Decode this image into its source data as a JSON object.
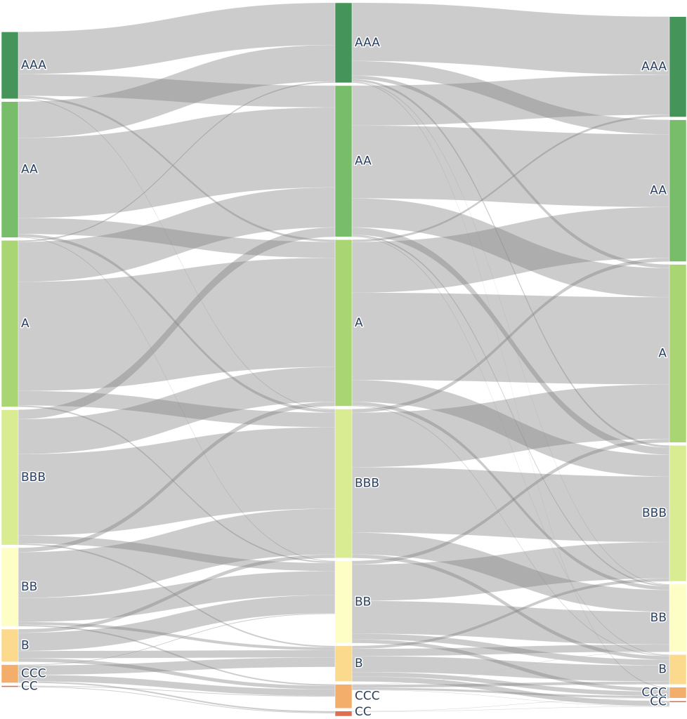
{
  "chart_data": {
    "type": "sankey",
    "title": "",
    "stages": [
      {
        "name": "",
        "nodes": [
          {
            "label": "AAA",
            "value": 92
          },
          {
            "label": "AA",
            "value": 187
          },
          {
            "label": "A",
            "value": 229
          },
          {
            "label": "BBB",
            "value": 186
          },
          {
            "label": "BB",
            "value": 108
          },
          {
            "label": "B",
            "value": 45
          },
          {
            "label": "CCC",
            "value": 25
          },
          {
            "label": "CC",
            "value": 2
          }
        ]
      },
      {
        "name": "",
        "nodes": [
          {
            "label": "AAA",
            "value": 110
          },
          {
            "label": "AA",
            "value": 208
          },
          {
            "label": "A",
            "value": 229
          },
          {
            "label": "BBB",
            "value": 205
          },
          {
            "label": "BB",
            "value": 113
          },
          {
            "label": "B",
            "value": 49
          },
          {
            "label": "CCC",
            "value": 33
          },
          {
            "label": "CC",
            "value": 7
          }
        ]
      },
      {
        "name": "",
        "nodes": [
          {
            "label": "AAA",
            "value": 138
          },
          {
            "label": "AA",
            "value": 195
          },
          {
            "label": "A",
            "value": 245
          },
          {
            "label": "BBB",
            "value": 187
          },
          {
            "label": "BB",
            "value": 93
          },
          {
            "label": "B",
            "value": 41
          },
          {
            "label": "CCC",
            "value": 15
          },
          {
            "label": "CC",
            "value": 2
          }
        ]
      }
    ],
    "node_colors": [
      "#459459",
      "#78bd6a",
      "#a9d672",
      "#d9ec92",
      "#fdfec6",
      "#fbd98d",
      "#f2ae6a",
      "#df6f4f"
    ],
    "link_color": "rgba(128,128,128,0.4)",
    "links": [
      {
        "stage": 0,
        "source": "AAA",
        "target": "AAA",
        "value": 58
      },
      {
        "stage": 0,
        "source": "AAA",
        "target": "AA",
        "value": 30
      },
      {
        "stage": 0,
        "source": "AAA",
        "target": "A",
        "value": 3
      },
      {
        "stage": 0,
        "source": "AAA",
        "target": "BBB",
        "value": 1
      },
      {
        "stage": 0,
        "source": "AA",
        "target": "AAA",
        "value": 50
      },
      {
        "stage": 0,
        "source": "AA",
        "target": "AA",
        "value": 110
      },
      {
        "stage": 0,
        "source": "AA",
        "target": "A",
        "value": 22
      },
      {
        "stage": 0,
        "source": "AA",
        "target": "BBB",
        "value": 4
      },
      {
        "stage": 0,
        "source": "AA",
        "target": "BB",
        "value": 1
      },
      {
        "stage": 0,
        "source": "A",
        "target": "AAA",
        "value": 2
      },
      {
        "stage": 0,
        "source": "A",
        "target": "AA",
        "value": 55
      },
      {
        "stage": 0,
        "source": "A",
        "target": "A",
        "value": 150
      },
      {
        "stage": 0,
        "source": "A",
        "target": "BBB",
        "value": 20
      },
      {
        "stage": 0,
        "source": "A",
        "target": "BB",
        "value": 2
      },
      {
        "stage": 0,
        "source": "BBB",
        "target": "AA",
        "value": 13
      },
      {
        "stage": 0,
        "source": "BBB",
        "target": "A",
        "value": 48
      },
      {
        "stage": 0,
        "source": "BBB",
        "target": "BBB",
        "value": 112
      },
      {
        "stage": 0,
        "source": "BBB",
        "target": "BB",
        "value": 11
      },
      {
        "stage": 0,
        "source": "BBB",
        "target": "B",
        "value": 2
      },
      {
        "stage": 0,
        "source": "BB",
        "target": "A",
        "value": 6
      },
      {
        "stage": 0,
        "source": "BB",
        "target": "BBB",
        "value": 63
      },
      {
        "stage": 0,
        "source": "BB",
        "target": "BB",
        "value": 33
      },
      {
        "stage": 0,
        "source": "BB",
        "target": "B",
        "value": 4
      },
      {
        "stage": 0,
        "source": "BB",
        "target": "CCC",
        "value": 2
      },
      {
        "stage": 0,
        "source": "B",
        "target": "BBB",
        "value": 5
      },
      {
        "stage": 0,
        "source": "B",
        "target": "BB",
        "value": 25
      },
      {
        "stage": 0,
        "source": "B",
        "target": "B",
        "value": 10
      },
      {
        "stage": 0,
        "source": "B",
        "target": "CCC",
        "value": 5
      },
      {
        "stage": 0,
        "source": "CCC",
        "target": "BB",
        "value": 1
      },
      {
        "stage": 0,
        "source": "CCC",
        "target": "B",
        "value": 13
      },
      {
        "stage": 0,
        "source": "CCC",
        "target": "CCC",
        "value": 9
      },
      {
        "stage": 0,
        "source": "CCC",
        "target": "CC",
        "value": 2
      },
      {
        "stage": 0,
        "source": "CC",
        "target": "CCC",
        "value": 1
      },
      {
        "stage": 0,
        "source": "CC",
        "target": "CC",
        "value": 1
      },
      {
        "stage": 1,
        "source": "AAA",
        "target": "AAA",
        "value": 80
      },
      {
        "stage": 1,
        "source": "AAA",
        "target": "AA",
        "value": 20
      },
      {
        "stage": 1,
        "source": "AAA",
        "target": "A",
        "value": 5
      },
      {
        "stage": 1,
        "source": "AAA",
        "target": "BBB",
        "value": 3
      },
      {
        "stage": 1,
        "source": "AAA",
        "target": "BB",
        "value": 1
      },
      {
        "stage": 1,
        "source": "AAA",
        "target": "CCC",
        "value": 1
      },
      {
        "stage": 1,
        "source": "AA",
        "target": "AAA",
        "value": 55
      },
      {
        "stage": 1,
        "source": "AA",
        "target": "AA",
        "value": 100
      },
      {
        "stage": 1,
        "source": "AA",
        "target": "A",
        "value": 40
      },
      {
        "stage": 1,
        "source": "AA",
        "target": "BBB",
        "value": 10
      },
      {
        "stage": 1,
        "source": "AA",
        "target": "BB",
        "value": 2
      },
      {
        "stage": 1,
        "source": "AA",
        "target": "B",
        "value": 1
      },
      {
        "stage": 1,
        "source": "A",
        "target": "AAA",
        "value": 3
      },
      {
        "stage": 1,
        "source": "A",
        "target": "AA",
        "value": 70
      },
      {
        "stage": 1,
        "source": "A",
        "target": "A",
        "value": 120
      },
      {
        "stage": 1,
        "source": "A",
        "target": "BBB",
        "value": 30
      },
      {
        "stage": 1,
        "source": "A",
        "target": "BB",
        "value": 5
      },
      {
        "stage": 1,
        "source": "A",
        "target": "B",
        "value": 1
      },
      {
        "stage": 1,
        "source": "BBB",
        "target": "AA",
        "value": 5
      },
      {
        "stage": 1,
        "source": "BBB",
        "target": "A",
        "value": 75
      },
      {
        "stage": 1,
        "source": "BBB",
        "target": "BBB",
        "value": 90
      },
      {
        "stage": 1,
        "source": "BBB",
        "target": "BB",
        "value": 30
      },
      {
        "stage": 1,
        "source": "BBB",
        "target": "B",
        "value": 5
      },
      {
        "stage": 1,
        "source": "BB",
        "target": "A",
        "value": 5
      },
      {
        "stage": 1,
        "source": "BB",
        "target": "BBB",
        "value": 50
      },
      {
        "stage": 1,
        "source": "BB",
        "target": "BB",
        "value": 45
      },
      {
        "stage": 1,
        "source": "BB",
        "target": "B",
        "value": 8
      },
      {
        "stage": 1,
        "source": "BB",
        "target": "CCC",
        "value": 5
      },
      {
        "stage": 1,
        "source": "B",
        "target": "BBB",
        "value": 4
      },
      {
        "stage": 1,
        "source": "B",
        "target": "BB",
        "value": 10
      },
      {
        "stage": 1,
        "source": "B",
        "target": "B",
        "value": 22
      },
      {
        "stage": 1,
        "source": "B",
        "target": "CCC",
        "value": 6
      },
      {
        "stage": 1,
        "source": "B",
        "target": "CC",
        "value": 7
      },
      {
        "stage": 1,
        "source": "CCC",
        "target": "B",
        "value": 4
      },
      {
        "stage": 1,
        "source": "CCC",
        "target": "BB",
        "value": 0.5
      },
      {
        "stage": 1,
        "source": "CCC",
        "target": "CCC",
        "value": 3
      },
      {
        "stage": 1,
        "source": "CCC",
        "target": "CC",
        "value": 0.5
      },
      {
        "stage": 1,
        "source": "CC",
        "target": "CCC",
        "value": 0.5
      },
      {
        "stage": 1,
        "source": "CC",
        "target": "CC",
        "value": 0.5
      }
    ]
  }
}
